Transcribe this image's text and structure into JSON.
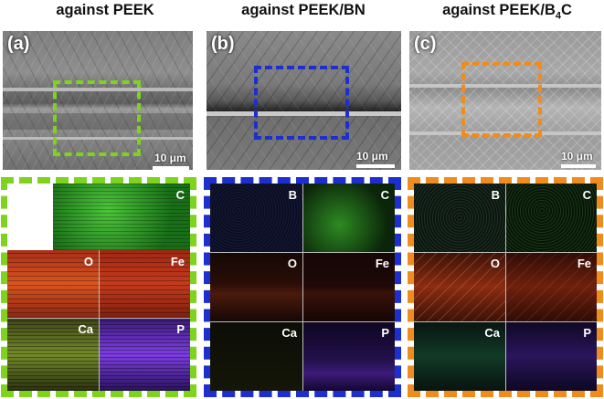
{
  "columns": [
    {
      "title": "against PEEK",
      "panel_label": "(a)",
      "scale_label": "10 μm",
      "frame_color": "#7ed31f",
      "maps": [
        "C",
        "O",
        "Fe",
        "Ca",
        "P"
      ]
    },
    {
      "title": "against PEEK/BN",
      "panel_label": "(b)",
      "scale_label": "10 μm",
      "frame_color": "#1e2fcf",
      "maps": [
        "B",
        "C",
        "O",
        "Fe",
        "Ca",
        "P"
      ]
    },
    {
      "title_main": "against PEEK/B",
      "title_sub": "4",
      "title_tail": "C",
      "panel_label": "(c)",
      "scale_label": "10 μm",
      "frame_color": "#f08c1e",
      "maps": [
        "B",
        "C",
        "O",
        "Fe",
        "Ca",
        "P"
      ]
    }
  ],
  "colors": {
    "C": "#3aa52a",
    "O": "#c2401c",
    "Fe": "#b3301a",
    "Ca": "#8a9b3a",
    "P": "#7a3ad8",
    "B": "#2f3a8a"
  }
}
